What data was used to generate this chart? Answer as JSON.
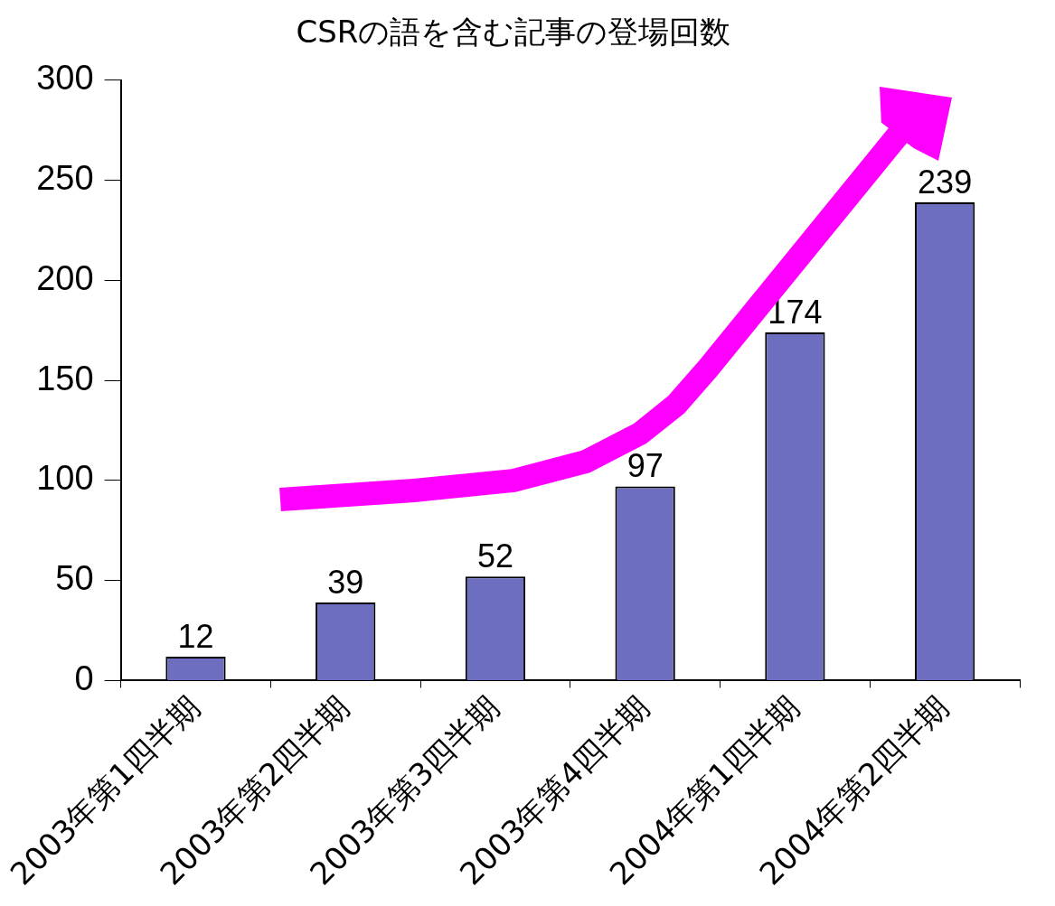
{
  "chart_data": {
    "type": "bar",
    "title": "CSRの語を含む記事の登場回数",
    "categories": [
      "2003年第1四半期",
      "2003年第2四半期",
      "2003年第3四半期",
      "2003年第4四半期",
      "2004年第1四半期",
      "2004年第2四半期"
    ],
    "values": [
      12,
      39,
      52,
      97,
      174,
      239
    ],
    "color": "#6e6ec0",
    "ylim": [
      0,
      300
    ],
    "yticks": [
      0,
      50,
      100,
      150,
      200,
      250,
      300
    ],
    "data_labels": true,
    "legend": false
  }
}
